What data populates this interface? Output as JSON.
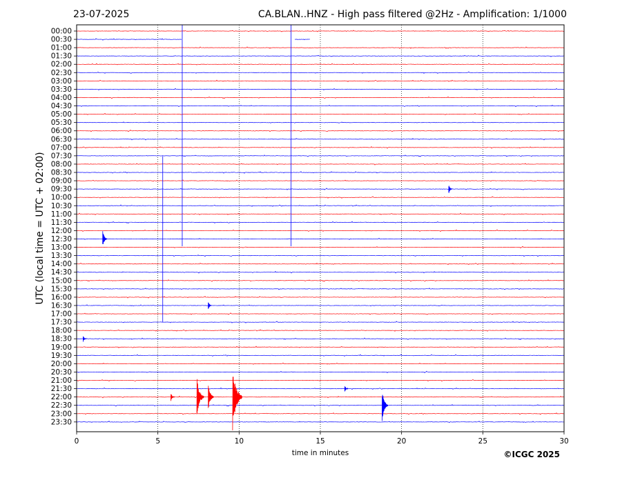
{
  "chart_data": {
    "type": "line",
    "title_left": "23-07-2025",
    "title_right": "CA.BLAN..HNZ - High pass filtered @2Hz - Amplification: 1/1000",
    "xlabel": "time in minutes",
    "ylabel": "UTC (local time = UTC + 02:00)",
    "credit": "©ICGC 2025",
    "xlim": [
      0,
      30
    ],
    "x_ticks": [
      "0",
      "5",
      "10",
      "15",
      "20",
      "25",
      "30"
    ],
    "grid": "vertical dotted lines at 5-minute intervals",
    "trace_colors": {
      "hour": "#ff0000",
      "half_hour": "#0000ff",
      "gridline": "#000000"
    },
    "rows": [
      "00:00",
      "00:30",
      "01:00",
      "01:30",
      "02:00",
      "02:30",
      "03:00",
      "03:30",
      "04:00",
      "04:30",
      "05:00",
      "05:30",
      "06:00",
      "06:30",
      "07:00",
      "07:30",
      "08:00",
      "08:30",
      "09:00",
      "09:30",
      "10:00",
      "10:30",
      "11:00",
      "11:30",
      "12:00",
      "12:30",
      "13:00",
      "13:30",
      "14:00",
      "14:30",
      "15:00",
      "15:30",
      "16:00",
      "16:30",
      "17:00",
      "17:30",
      "18:00",
      "18:30",
      "19:00",
      "19:30",
      "20:00",
      "20:30",
      "21:00",
      "21:30",
      "22:00",
      "22:30",
      "23:00",
      "23:30"
    ],
    "data_gaps": [
      {
        "row": "00:30",
        "x_start": 6.5,
        "x_end": 13.4
      },
      {
        "row": "00:30",
        "x_start": 14.4,
        "x_end": 30
      }
    ],
    "events": [
      {
        "row": "00:30",
        "x": 6.5,
        "amplitude": 50,
        "label": ""
      },
      {
        "row": "00:30",
        "x": 13.2,
        "amplitude": 50,
        "label": ""
      },
      {
        "row": "12:30",
        "x": 1.6,
        "amplitude": 2.2,
        "label": ""
      },
      {
        "row": "12:30",
        "x": 5.3,
        "amplitude": 20,
        "label": ""
      },
      {
        "row": "16:30",
        "x": 8.1,
        "amplitude": 1.1,
        "label": ""
      },
      {
        "row": "18:30",
        "x": 0.4,
        "amplitude": 0.8,
        "label": ""
      },
      {
        "row": "22:00",
        "x": 5.8,
        "amplitude": 1.0,
        "label": ""
      },
      {
        "row": "22:00",
        "x": 7.4,
        "amplitude": 5.5,
        "label": ""
      },
      {
        "row": "22:00",
        "x": 8.1,
        "amplitude": 3.5,
        "label": ""
      },
      {
        "row": "22:00",
        "x": 9.6,
        "amplitude": 8.5,
        "label": ""
      },
      {
        "row": "22:30",
        "x": 18.8,
        "amplitude": 4.0,
        "label": ""
      },
      {
        "row": "21:30",
        "x": 16.5,
        "amplitude": 0.8,
        "label": ""
      },
      {
        "row": "09:30",
        "x": 22.9,
        "amplitude": 1.2,
        "label": ""
      }
    ]
  }
}
